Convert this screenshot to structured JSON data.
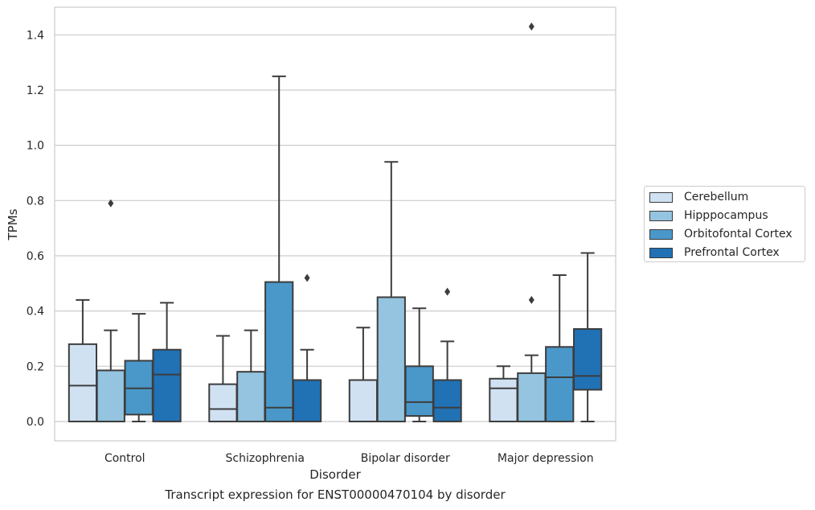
{
  "caption": "Transcript expression for ENST00000470104 by disorder",
  "chart_data": {
    "type": "box",
    "xlabel": "Disorder",
    "ylabel": "TPMs",
    "ylim": [
      -0.07,
      1.5
    ],
    "yticks": [
      "0.0",
      "0.2",
      "0.4",
      "0.6",
      "0.8",
      "1.0",
      "1.2",
      "1.4"
    ],
    "grid": true,
    "legend_position": "right",
    "categories": [
      "Control",
      "Schizophrenia",
      "Bipolar disorder",
      "Major depression"
    ],
    "series": [
      {
        "name": "Cerebellum",
        "color": "#d0e1f2",
        "boxes": [
          {
            "whislo": 0.0,
            "q1": 0.0,
            "med": 0.13,
            "q3": 0.28,
            "whishi": 0.44,
            "fliers": []
          },
          {
            "whislo": 0.0,
            "q1": 0.0,
            "med": 0.045,
            "q3": 0.135,
            "whishi": 0.31,
            "fliers": []
          },
          {
            "whislo": 0.0,
            "q1": 0.0,
            "med": 0.0,
            "q3": 0.15,
            "whishi": 0.34,
            "fliers": []
          },
          {
            "whislo": 0.0,
            "q1": 0.0,
            "med": 0.12,
            "q3": 0.155,
            "whishi": 0.2,
            "fliers": []
          }
        ]
      },
      {
        "name": "Hipppocampus",
        "color": "#94c4df",
        "boxes": [
          {
            "whislo": 0.0,
            "q1": 0.0,
            "med": 0.0,
            "q3": 0.185,
            "whishi": 0.33,
            "fliers": [
              0.79
            ]
          },
          {
            "whislo": 0.0,
            "q1": 0.0,
            "med": 0.0,
            "q3": 0.18,
            "whishi": 0.33,
            "fliers": []
          },
          {
            "whislo": 0.0,
            "q1": 0.0,
            "med": 0.0,
            "q3": 0.45,
            "whishi": 0.94,
            "fliers": []
          },
          {
            "whislo": 0.0,
            "q1": 0.0,
            "med": 0.0,
            "q3": 0.175,
            "whishi": 0.24,
            "fliers": [
              0.44,
              1.43
            ]
          }
        ]
      },
      {
        "name": "Orbitofontal Cortex",
        "color": "#4a98c9",
        "boxes": [
          {
            "whislo": 0.0,
            "q1": 0.025,
            "med": 0.12,
            "q3": 0.22,
            "whishi": 0.39,
            "fliers": []
          },
          {
            "whislo": 0.0,
            "q1": 0.0,
            "med": 0.05,
            "q3": 0.505,
            "whishi": 1.25,
            "fliers": []
          },
          {
            "whislo": 0.0,
            "q1": 0.02,
            "med": 0.07,
            "q3": 0.2,
            "whishi": 0.41,
            "fliers": []
          },
          {
            "whislo": 0.0,
            "q1": 0.0,
            "med": 0.16,
            "q3": 0.27,
            "whishi": 0.53,
            "fliers": []
          }
        ]
      },
      {
        "name": "Prefrontal Cortex",
        "color": "#2171b5",
        "boxes": [
          {
            "whislo": 0.0,
            "q1": 0.0,
            "med": 0.17,
            "q3": 0.26,
            "whishi": 0.43,
            "fliers": []
          },
          {
            "whislo": 0.0,
            "q1": 0.0,
            "med": 0.0,
            "q3": 0.15,
            "whishi": 0.26,
            "fliers": [
              0.52
            ]
          },
          {
            "whislo": 0.0,
            "q1": 0.0,
            "med": 0.05,
            "q3": 0.15,
            "whishi": 0.29,
            "fliers": [
              0.47
            ]
          },
          {
            "whislo": 0.0,
            "q1": 0.115,
            "med": 0.165,
            "q3": 0.335,
            "whishi": 0.61,
            "fliers": []
          }
        ]
      }
    ]
  }
}
